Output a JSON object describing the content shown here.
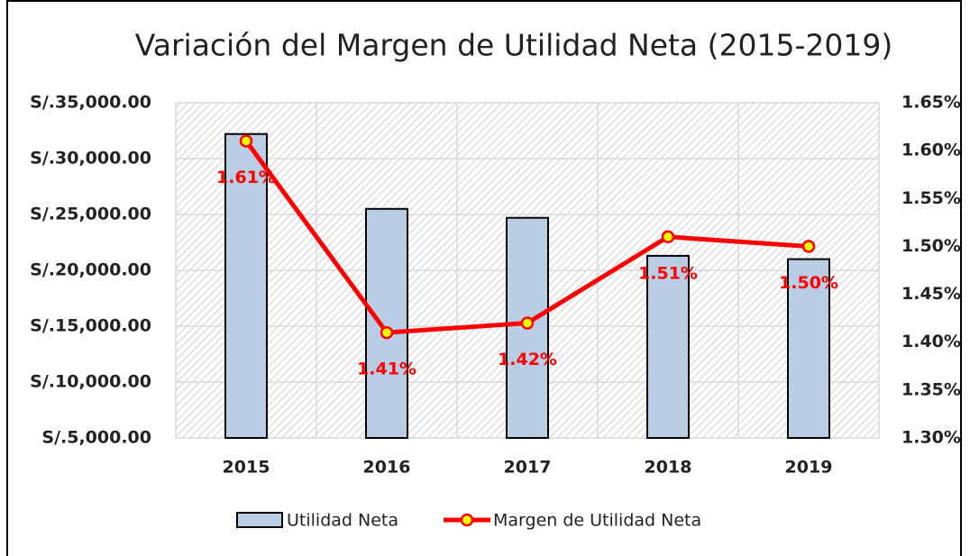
{
  "chart_data": {
    "type": "bar-line",
    "title": "Variación del Margen de Utilidad Neta (2015-2019)",
    "categories": [
      "2015",
      "2016",
      "2017",
      "2018",
      "2019"
    ],
    "series": [
      {
        "name": "Utilidad Neta",
        "type": "bar",
        "color": "#b9cde5",
        "values": [
          32200,
          25500,
          24700,
          21300,
          21000
        ]
      },
      {
        "name": "Margen de Utilidad Neta",
        "type": "line",
        "axis": "y2",
        "color": "#ff0000",
        "values": [
          1.61,
          1.41,
          1.42,
          1.51,
          1.5
        ],
        "value_labels": [
          "1.61%",
          "1.41%",
          "1.42%",
          "1.51%",
          "1.50%"
        ]
      }
    ],
    "ylim": [
      5000,
      35000
    ],
    "yticks": [
      {
        "value": 5000,
        "label": "S/.5,000.00"
      },
      {
        "value": 10000,
        "label": "S/.10,000.00"
      },
      {
        "value": 15000,
        "label": "S/.15,000.00"
      },
      {
        "value": 20000,
        "label": "S/.20,000.00"
      },
      {
        "value": 25000,
        "label": "S/.25,000.00"
      },
      {
        "value": 30000,
        "label": "S/.30,000.00"
      },
      {
        "value": 35000,
        "label": "S/.35,000.00"
      }
    ],
    "y2lim": [
      1.3,
      1.65
    ],
    "y2ticks": [
      {
        "value": 1.3,
        "label": "1.30%"
      },
      {
        "value": 1.35,
        "label": "1.35%"
      },
      {
        "value": 1.4,
        "label": "1.40%"
      },
      {
        "value": 1.45,
        "label": "1.45%"
      },
      {
        "value": 1.5,
        "label": "1.50%"
      },
      {
        "value": 1.55,
        "label": "1.55%"
      },
      {
        "value": 1.6,
        "label": "1.60%"
      },
      {
        "value": 1.65,
        "label": "1.65%"
      }
    ],
    "grid": true,
    "legend": "bottom"
  }
}
